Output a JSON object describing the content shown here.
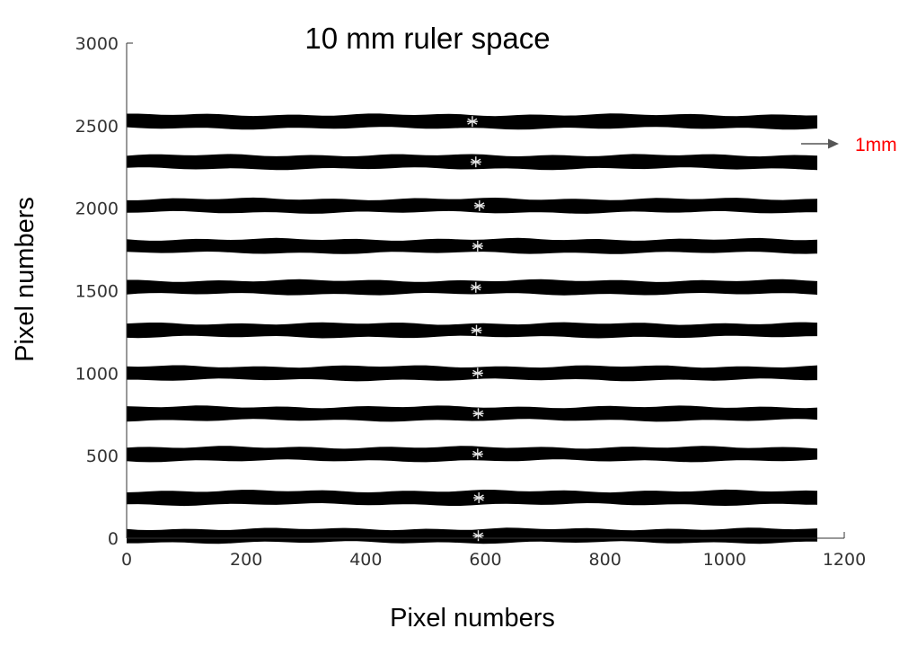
{
  "chart_data": {
    "type": "scatter",
    "title": "10 mm ruler space",
    "xlabel": "Pixel numbers",
    "ylabel": "Pixel numbers",
    "xlim": [
      0,
      1200
    ],
    "ylim": [
      0,
      3000
    ],
    "xticks": [
      "0",
      "200",
      "400",
      "600",
      "800",
      "1000",
      "1200"
    ],
    "yticks": [
      "0",
      "500",
      "1000",
      "1500",
      "2000",
      "2500",
      "3000"
    ],
    "grid": false,
    "ruler_lines": {
      "x_start": 0,
      "x_end": 1155,
      "y": [
        15,
        245,
        510,
        755,
        1000,
        1260,
        1520,
        1770,
        2015,
        2280,
        2525
      ],
      "color": "#000000"
    },
    "center_markers": {
      "x": [
        588,
        589,
        587,
        588,
        587,
        585,
        584,
        587,
        590,
        584,
        578
      ],
      "y": [
        15,
        245,
        510,
        755,
        1000,
        1260,
        1520,
        1770,
        2015,
        2280,
        2525
      ],
      "color": "#e6e6e6"
    },
    "annotation": {
      "text": "1mm",
      "text_color": "#ff0000",
      "arrow_color": "#555555"
    }
  }
}
